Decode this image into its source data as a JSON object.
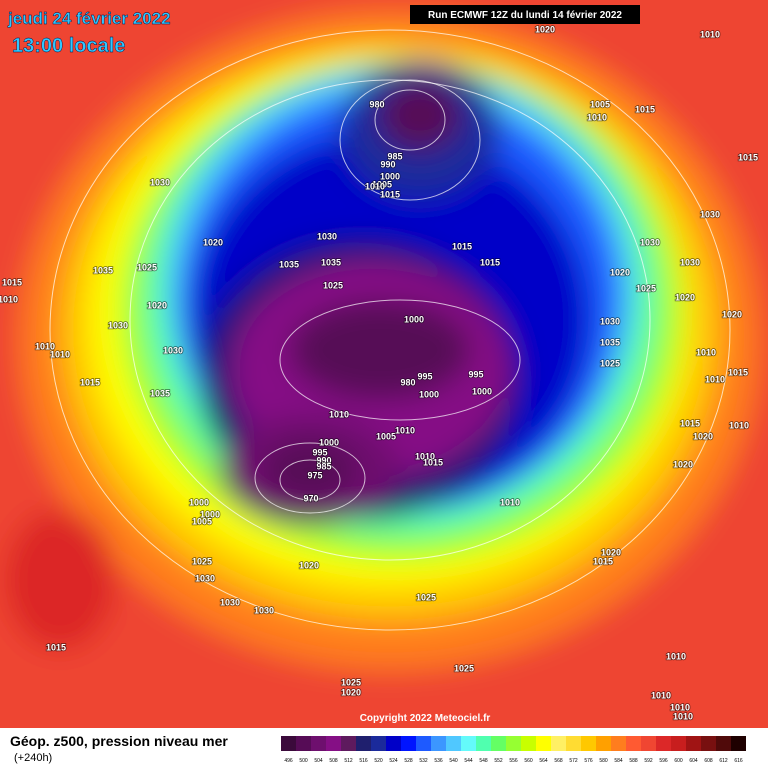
{
  "header": {
    "date": "jeudi 24 février 2022",
    "time": "13:00 locale",
    "run": "Run ECMWF 12Z du lundi 14 février 2022"
  },
  "copyright": "Copyright 2022 Meteociel.fr",
  "legend": {
    "title": "Géop. z500, pression niveau mer",
    "subtitle": "(+240h)"
  },
  "colorbar": {
    "values": [
      496,
      500,
      504,
      508,
      512,
      516,
      520,
      524,
      528,
      532,
      536,
      540,
      544,
      548,
      552,
      556,
      560,
      564,
      568,
      572,
      576,
      580,
      584,
      588,
      592,
      596,
      600,
      604,
      608,
      612,
      616
    ],
    "colors": [
      "#3b0a3b",
      "#560c56",
      "#6e0f6e",
      "#850f85",
      "#5e1a5e",
      "#1f1f6e",
      "#1b2a9b",
      "#0000c8",
      "#0014ff",
      "#1e5aff",
      "#3c96ff",
      "#50c8ff",
      "#64fafa",
      "#50ffaf",
      "#64ff64",
      "#96ff32",
      "#c8ff00",
      "#ffff00",
      "#fff064",
      "#ffdc32",
      "#ffc800",
      "#ffa000",
      "#ff7d1e",
      "#ff5a32",
      "#f04632",
      "#dc2828",
      "#c81e1e",
      "#a01414",
      "#781010",
      "#500a0a",
      "#1e0000"
    ]
  },
  "isobar_labels": [
    1020,
    1010,
    980,
    1005,
    1015,
    1010,
    1015,
    985,
    990,
    1000,
    1005,
    1010,
    1015,
    1030,
    1030,
    1020,
    1030,
    1015,
    1030,
    1035,
    1025,
    1035,
    1035,
    1015,
    1020,
    1030,
    1015,
    1025,
    1025,
    1020,
    1010,
    1020,
    1000,
    1030,
    1030,
    1020,
    1010,
    1010,
    1030,
    1035,
    995,
    995,
    980,
    1010,
    1025,
    1010,
    1015,
    1015,
    1000,
    1000,
    1035,
    1010,
    1005,
    1010,
    1015,
    1010,
    1020,
    1000,
    995,
    990,
    985,
    975,
    970,
    1010,
    1015,
    1020,
    1010,
    1000,
    1000,
    1005,
    1020,
    1015,
    1020,
    1025,
    1030,
    1030,
    1030,
    1025,
    1015,
    1010,
    1025,
    1025,
    1020,
    1010,
    1010,
    1010
  ]
}
